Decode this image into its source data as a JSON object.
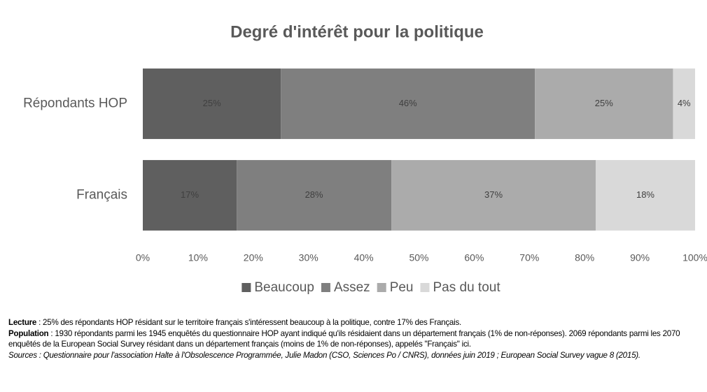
{
  "chart_data": {
    "type": "stacked_bar_horizontal",
    "title": "Degré d'intérêt pour la politique",
    "categories": [
      "Répondants HOP",
      "Français"
    ],
    "series": [
      {
        "name": "Beaucoup",
        "color": "#5f5f5f",
        "values": [
          25,
          17
        ],
        "value_labels": [
          "25%",
          "17%"
        ]
      },
      {
        "name": "Assez",
        "color": "#7f7f7f",
        "values": [
          46,
          28
        ],
        "value_labels": [
          "46%",
          "28%"
        ]
      },
      {
        "name": "Peu",
        "color": "#ababab",
        "values": [
          25,
          37
        ],
        "value_labels": [
          "25%",
          "37%"
        ]
      },
      {
        "name": "Pas du tout",
        "color": "#d9d9d9",
        "values": [
          4,
          18
        ],
        "value_labels": [
          "4%",
          "18%"
        ]
      }
    ],
    "xlim": [
      0,
      100
    ],
    "xticks": [
      {
        "value": 0,
        "label": "0%"
      },
      {
        "value": 10,
        "label": "10%"
      },
      {
        "value": 20,
        "label": "20%"
      },
      {
        "value": 30,
        "label": "30%"
      },
      {
        "value": 40,
        "label": "40%"
      },
      {
        "value": 50,
        "label": "50%"
      },
      {
        "value": 60,
        "label": "60%"
      },
      {
        "value": 70,
        "label": "70%"
      },
      {
        "value": 80,
        "label": "80%"
      },
      {
        "value": 90,
        "label": "90%"
      },
      {
        "value": 100,
        "label": "100%"
      }
    ],
    "grid": false,
    "legend": "bottom"
  },
  "notes": [
    {
      "label": "Lecture",
      "text": " : 25% des répondants HOP résidant sur le territoire français s'intéressent beaucoup à la politique, contre 17% des Français."
    },
    {
      "label": "Population",
      "text": " : 1930 répondants parmi les 1945 enquêtés du questionnaire HOP ayant indiqué qu'ils résidaient dans un département français (1% de non-réponses). 2069 répondants parmi les 2070 enquêtés de la European Social Survey résidant dans un département français (moins de 1% de non-réponses), appelés \"Français\" ici."
    },
    {
      "label": "Sources",
      "text": " : Questionnaire pour l'association Halte à l'Obsolescence Programmée, Julie Madon (CSO, Sciences Po / CNRS), données juin 2019 ; European Social Survey vague 8 (2015)."
    }
  ]
}
